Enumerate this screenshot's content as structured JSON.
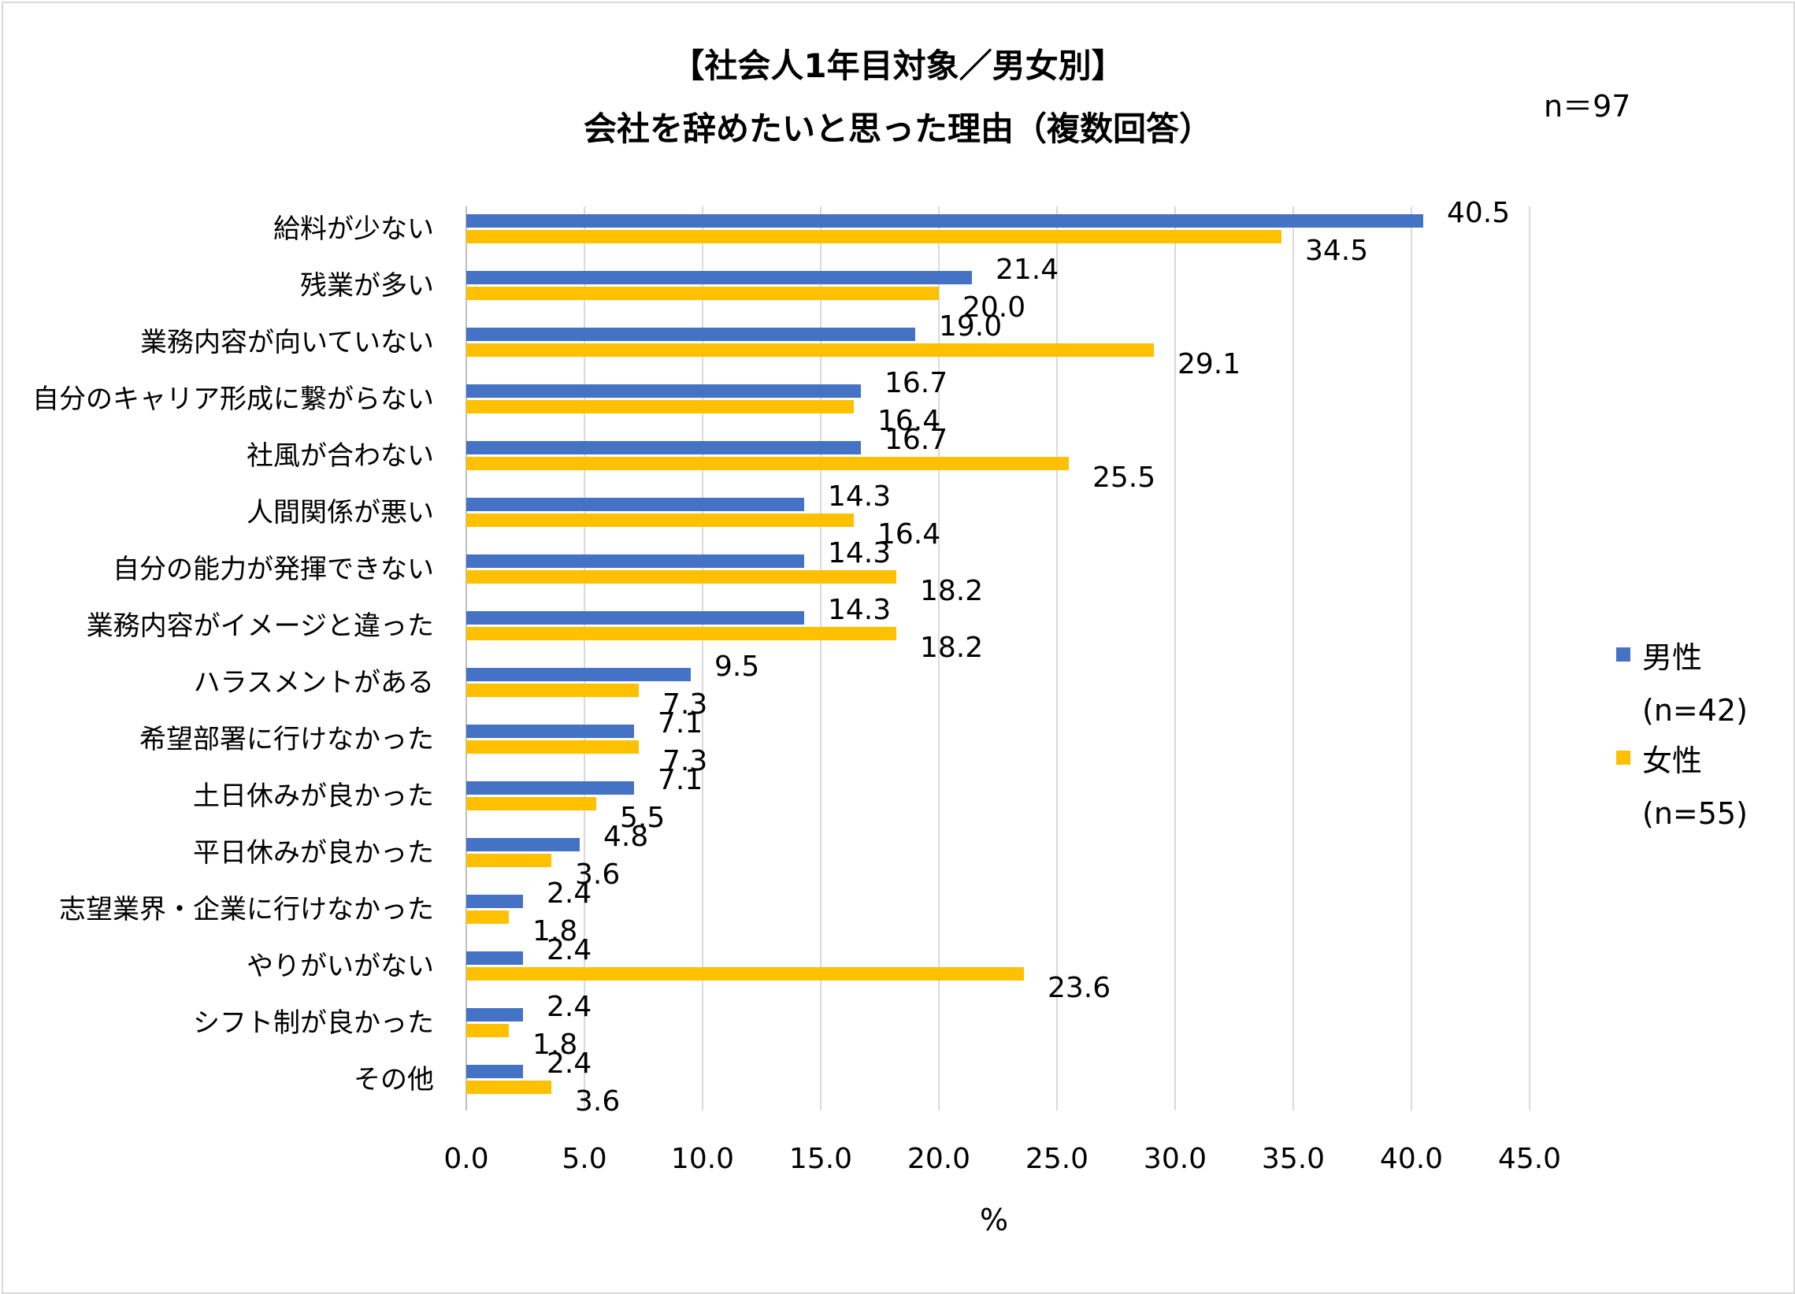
{
  "chart_data": {
    "type": "bar",
    "orientation": "horizontal",
    "title_lines": [
      "【社会人1年目対象／男女別】",
      "会社を辞めたいと思った理由（複数回答）"
    ],
    "sample_note": "n＝97",
    "xlabel": "%",
    "xlim": [
      0,
      45
    ],
    "xticks": [
      0,
      5,
      10,
      15,
      20,
      25,
      30,
      35,
      40,
      45
    ],
    "xtick_labels": [
      "0.0",
      "5.0",
      "10.0",
      "15.0",
      "20.0",
      "25.0",
      "30.0",
      "35.0",
      "40.0",
      "45.0"
    ],
    "grid": true,
    "legend_position": "right",
    "categories": [
      "給料が少ない",
      "残業が多い",
      "業務内容が向いていない",
      "自分のキャリア形成に繋がらない",
      "社風が合わない",
      "人間関係が悪い",
      "自分の能力が発揮できない",
      "業務内容がイメージと違った",
      "ハラスメントがある",
      "希望部署に行けなかった",
      "土日休みが良かった",
      "平日休みが良かった",
      "志望業界・企業に行けなかった",
      "やりがいがない",
      "シフト制が良かった",
      "その他"
    ],
    "series": [
      {
        "name": "男性",
        "n_label": "(n=42)",
        "color": "#4472C4",
        "values": [
          40.5,
          21.4,
          19.0,
          16.7,
          16.7,
          14.3,
          14.3,
          14.3,
          9.5,
          7.1,
          7.1,
          4.8,
          2.4,
          2.4,
          2.4,
          2.4
        ],
        "labels": [
          "40.5",
          "21.4",
          "19.0",
          "16.7",
          "16.7",
          "14.3",
          "14.3",
          "14.3",
          "9.5",
          "7.1",
          "7.1",
          "4.8",
          "2.4",
          "2.4",
          "2.4",
          "2.4"
        ]
      },
      {
        "name": "女性",
        "n_label": "(n=55)",
        "color": "#FFC000",
        "values": [
          34.5,
          20.0,
          29.1,
          16.4,
          25.5,
          16.4,
          18.2,
          18.2,
          7.3,
          7.3,
          5.5,
          3.6,
          1.8,
          23.6,
          1.8,
          3.6
        ],
        "labels": [
          "34.5",
          "20.0",
          "29.1",
          "16.4",
          "25.5",
          "16.4",
          "18.2",
          "18.2",
          "7.3",
          "7.3",
          "5.5",
          "3.6",
          "1.8",
          "23.6",
          "1.8",
          "3.6"
        ]
      }
    ]
  }
}
